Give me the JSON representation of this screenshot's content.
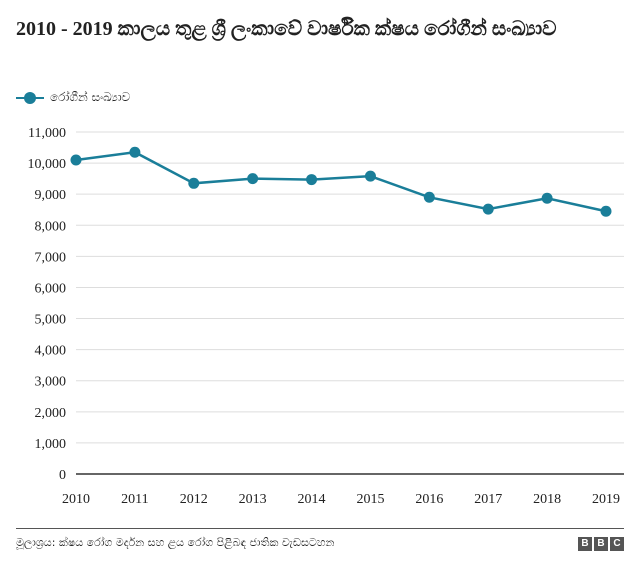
{
  "chart_data": {
    "type": "line",
    "title": "2010 - 2019 කාලය තුළ ශ්‍රී ලංකාවේ වාර්ෂික ක්ෂය රෝගීන් සංඛ්‍යාව",
    "xlabel": "",
    "ylabel": "",
    "categories": [
      "2010",
      "2011",
      "2012",
      "2013",
      "2014",
      "2015",
      "2016",
      "2017",
      "2018",
      "2019"
    ],
    "series": [
      {
        "name": "රෝගීන් සංඛ්‍යාව",
        "color": "#1a7e99",
        "values": [
          10100,
          10350,
          9350,
          9500,
          9470,
          9580,
          8900,
          8520,
          8870,
          8450
        ]
      }
    ],
    "ylim": [
      0,
      11000
    ],
    "yticks": [
      0,
      1000,
      2000,
      3000,
      4000,
      5000,
      6000,
      7000,
      8000,
      9000,
      10000,
      11000
    ],
    "grid": true,
    "legend_position": "top-left"
  },
  "footer": {
    "source": "මූලාශ්‍රය: ක්ෂය රෝග මර්දන සහ ළය රෝග පිළිබඳ ජාතික වැඩසටහන",
    "logo_letters": [
      "B",
      "B",
      "C"
    ]
  }
}
